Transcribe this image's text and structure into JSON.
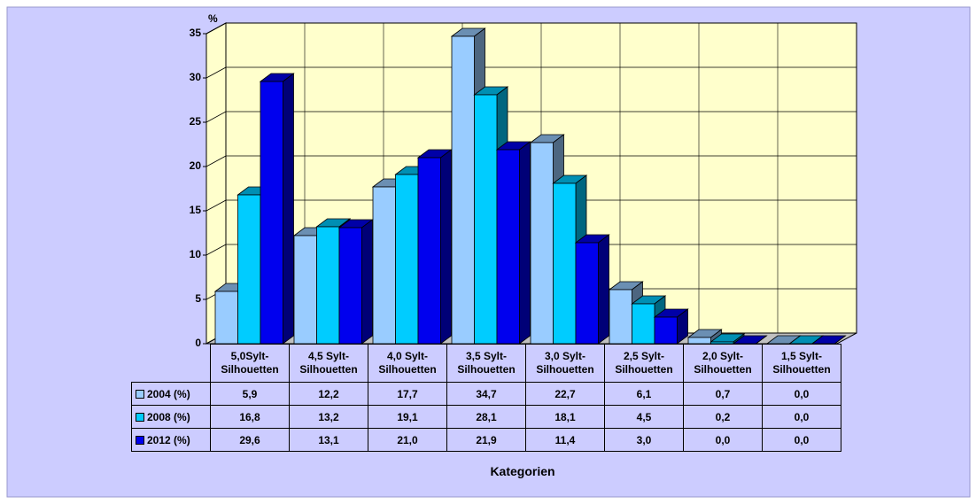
{
  "chart_data": {
    "type": "bar",
    "three_d": true,
    "ylabel": "%",
    "xlabel": "Kategorien",
    "categories": [
      "5,0Sylt-\nSilhouetten",
      "4,5 Sylt-\nSilhouetten",
      "4,0 Sylt-\nSilhouetten",
      "3,5 Sylt-\nSilhouetten",
      "3,0 Sylt-\nSilhouetten",
      "2,5 Sylt-\nSilhouetten",
      "2,0 Sylt-\nSilhouetten",
      "1,5 Sylt-\nSilhouetten"
    ],
    "series": [
      {
        "name": "2004 (%)",
        "color": "#99ccff",
        "values": [
          5.9,
          12.2,
          17.7,
          34.7,
          22.7,
          6.1,
          0.7,
          0.0
        ],
        "value_labels": [
          "5,9",
          "12,2",
          "17,7",
          "34,7",
          "22,7",
          "6,1",
          "0,7",
          "0,0"
        ]
      },
      {
        "name": "2008 (%)",
        "color": "#00ccff",
        "values": [
          16.8,
          13.2,
          19.1,
          28.1,
          18.1,
          4.5,
          0.2,
          0.0
        ],
        "value_labels": [
          "16,8",
          "13,2",
          "19,1",
          "28,1",
          "18,1",
          "4,5",
          "0,2",
          "0,0"
        ]
      },
      {
        "name": "2012 (%)",
        "color": "#0000ee",
        "values": [
          29.6,
          13.1,
          21.0,
          21.9,
          11.4,
          3.0,
          0.0,
          0.0
        ],
        "value_labels": [
          "29,6",
          "13,1",
          "21,0",
          "21,9",
          "11,4",
          "3,0",
          "0,0",
          "0,0"
        ]
      }
    ],
    "ylim": [
      0,
      35
    ],
    "yticks": [
      0,
      5,
      10,
      15,
      20,
      25,
      30,
      35
    ],
    "grid": true,
    "wall_color": "#ffffcc",
    "background": "#ccccff"
  }
}
